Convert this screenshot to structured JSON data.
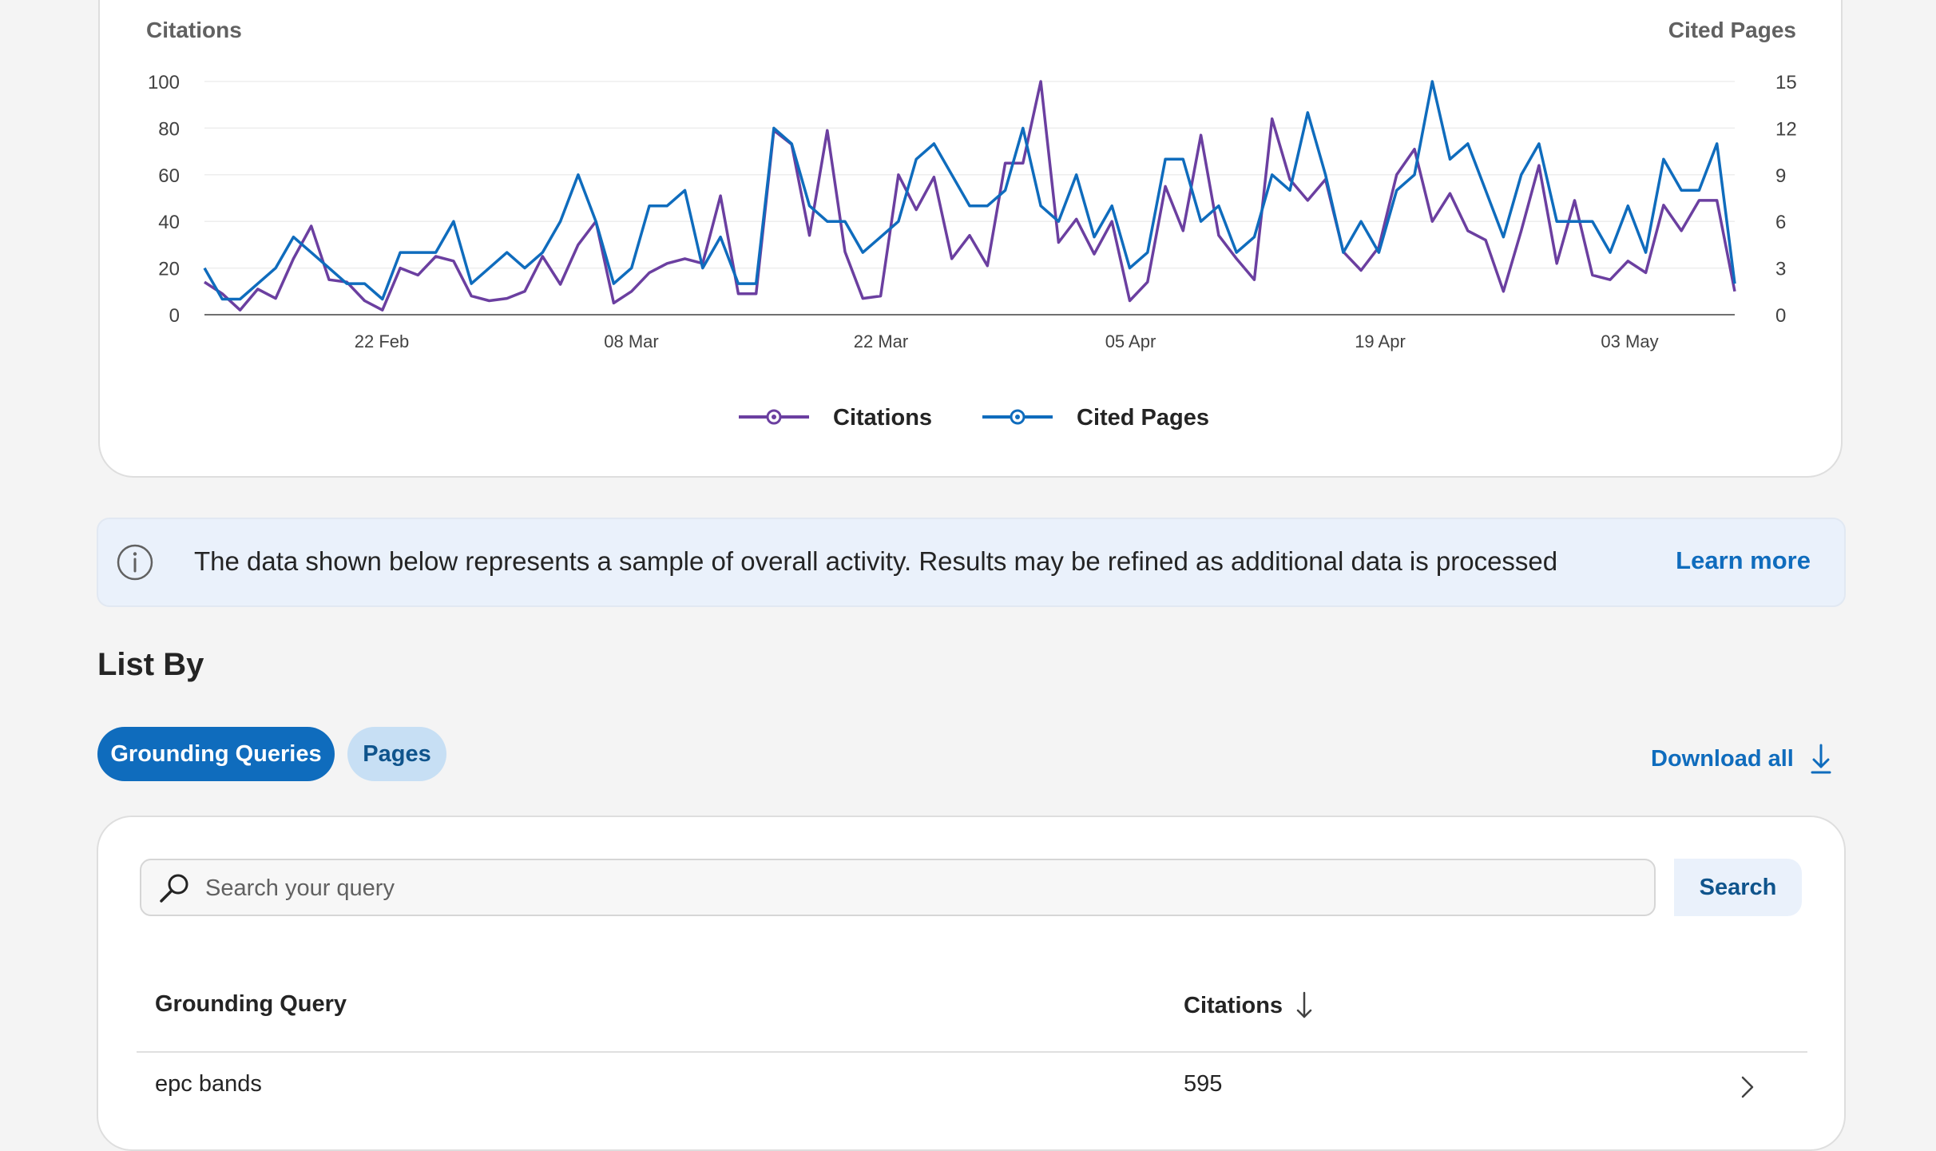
{
  "chart_data": {
    "type": "line",
    "x_tick_labels": [
      "22 Feb",
      "08 Mar",
      "22 Mar",
      "05 Apr",
      "19 Apr",
      "03 May"
    ],
    "y_left": {
      "label": "Citations",
      "ticks": [
        "0",
        "20",
        "40",
        "60",
        "80",
        "100"
      ],
      "range": [
        0,
        100
      ]
    },
    "y_right": {
      "label": "Cited Pages",
      "ticks": [
        "0",
        "3",
        "6",
        "9",
        "12",
        "15"
      ],
      "range": [
        0,
        15
      ]
    },
    "grid": true,
    "legend_position": "bottom-center",
    "series": [
      {
        "name": "Citations",
        "axis": "left",
        "color": "#6b3fa0",
        "values": [
          14,
          9,
          2,
          11,
          7,
          24,
          38,
          15,
          14,
          6,
          2,
          20,
          17,
          25,
          23,
          8,
          6,
          7,
          10,
          25,
          13,
          30,
          40,
          5,
          10,
          18,
          22,
          24,
          22,
          51,
          9,
          9,
          79,
          73,
          34,
          79,
          27,
          7,
          8,
          60,
          45,
          59,
          24,
          34,
          21,
          65,
          65,
          100,
          31,
          41,
          26,
          40,
          6,
          14,
          55,
          36,
          77,
          34,
          24,
          15,
          84,
          58,
          49,
          58,
          27,
          19,
          29,
          60,
          71,
          40,
          52,
          36,
          32,
          10,
          36,
          64,
          22,
          49,
          17,
          15,
          23,
          18,
          47,
          36,
          49,
          49,
          10
        ]
      },
      {
        "name": "Cited Pages",
        "axis": "right",
        "color": "#0f6cbd",
        "values": [
          3,
          1,
          1,
          2,
          3,
          5,
          4,
          3,
          2,
          2,
          1,
          4,
          4,
          4,
          6,
          2,
          3,
          4,
          3,
          4,
          6,
          9,
          6,
          2,
          3,
          7,
          7,
          8,
          3,
          5,
          2,
          2,
          12,
          11,
          7,
          6,
          6,
          4,
          5,
          6,
          10,
          11,
          9,
          7,
          7,
          8,
          12,
          7,
          6,
          9,
          5,
          7,
          3,
          4,
          10,
          10,
          6,
          7,
          4,
          5,
          9,
          8,
          13,
          9,
          4,
          6,
          4,
          8,
          9,
          15,
          10,
          11,
          8,
          5,
          9,
          11,
          6,
          6,
          6,
          4,
          7,
          4,
          10,
          8,
          8,
          11,
          2
        ]
      }
    ]
  },
  "banner": {
    "message": "The data shown below represents a sample of overall activity. Results may be refined as additional data is processed",
    "link": "Learn more"
  },
  "list": {
    "title": "List By",
    "tabs": [
      "Grounding Queries",
      "Pages"
    ],
    "download_label": "Download all"
  },
  "search": {
    "placeholder": "Search your query",
    "value": "",
    "button": "Search"
  },
  "table": {
    "columns": [
      "Grounding Query",
      "Citations"
    ],
    "rows": [
      {
        "query": "epc bands",
        "citations": "595"
      }
    ]
  },
  "colors": {
    "accent": "#0f6cbd",
    "citations_series": "#6b3fa0",
    "cited_pages_series": "#0f6cbd"
  }
}
